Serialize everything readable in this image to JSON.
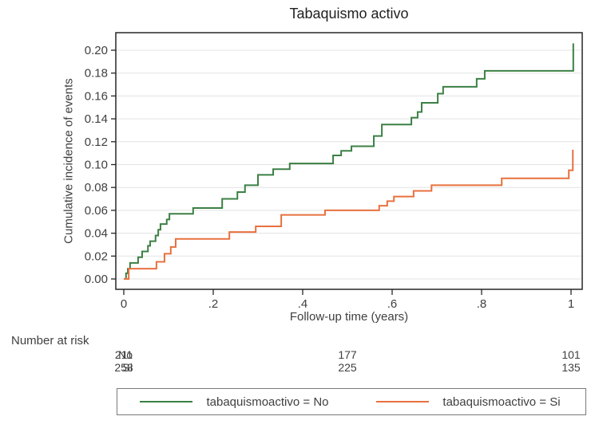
{
  "colors": {
    "series_no": "#3b8044",
    "series_si": "#e8713f",
    "grid": "#e3e3e3",
    "frame": "#262626",
    "text": "#3f3f3f"
  },
  "chart_data": {
    "type": "line",
    "subtype": "step-cumulative-incidence",
    "title": "Tabaquismo activo",
    "xlabel": "Follow-up time (years)",
    "ylabel": "Cumulative incidence of events",
    "xlim": [
      -0.02,
      1.03
    ],
    "ylim": [
      0,
      0.21
    ],
    "grid": "horizontal",
    "legend_position": "bottom-box",
    "x_ticks": [
      {
        "label": "0",
        "value": 0
      },
      {
        "label": ".2",
        "value": 0.2
      },
      {
        "label": ".4",
        "value": 0.4
      },
      {
        "label": ".6",
        "value": 0.6
      },
      {
        "label": ".8",
        "value": 0.8
      },
      {
        "label": "1",
        "value": 1
      }
    ],
    "y_ticks": [
      {
        "label": "0.00",
        "value": 0.0
      },
      {
        "label": "0.02",
        "value": 0.02
      },
      {
        "label": "0.04",
        "value": 0.04
      },
      {
        "label": "0.06",
        "value": 0.06
      },
      {
        "label": "0.08",
        "value": 0.08
      },
      {
        "label": "0.10",
        "value": 0.1
      },
      {
        "label": "0.12",
        "value": 0.12
      },
      {
        "label": "0.14",
        "value": 0.14
      },
      {
        "label": "0.16",
        "value": 0.16
      },
      {
        "label": "0.18",
        "value": 0.18
      },
      {
        "label": "0.20",
        "value": 0.2
      }
    ],
    "series": [
      {
        "name": "tabaquismoactivo = No",
        "color": "#3b8044",
        "step": true,
        "points": [
          [
            0,
            0
          ],
          [
            0.005,
            0.005
          ],
          [
            0.009,
            0.009
          ],
          [
            0.014,
            0.014
          ],
          [
            0.032,
            0.019
          ],
          [
            0.041,
            0.024
          ],
          [
            0.054,
            0.029
          ],
          [
            0.059,
            0.033
          ],
          [
            0.071,
            0.038
          ],
          [
            0.077,
            0.043
          ],
          [
            0.082,
            0.048
          ],
          [
            0.096,
            0.052
          ],
          [
            0.102,
            0.057
          ],
          [
            0.155,
            0.062
          ],
          [
            0.22,
            0.07
          ],
          [
            0.254,
            0.076
          ],
          [
            0.271,
            0.082
          ],
          [
            0.3,
            0.091
          ],
          [
            0.334,
            0.096
          ],
          [
            0.371,
            0.101
          ],
          [
            0.468,
            0.108
          ],
          [
            0.486,
            0.112
          ],
          [
            0.509,
            0.116
          ],
          [
            0.559,
            0.125
          ],
          [
            0.577,
            0.135
          ],
          [
            0.643,
            0.141
          ],
          [
            0.657,
            0.146
          ],
          [
            0.666,
            0.154
          ],
          [
            0.702,
            0.162
          ],
          [
            0.714,
            0.168
          ],
          [
            0.789,
            0.175
          ],
          [
            0.807,
            0.182
          ],
          [
            1.005,
            0.206
          ]
        ]
      },
      {
        "name": "tabaquismoactivo = Si",
        "color": "#e8713f",
        "step": true,
        "points": [
          [
            0,
            0
          ],
          [
            0.011,
            0.009
          ],
          [
            0.073,
            0.015
          ],
          [
            0.091,
            0.022
          ],
          [
            0.105,
            0.028
          ],
          [
            0.116,
            0.035
          ],
          [
            0.236,
            0.041
          ],
          [
            0.295,
            0.046
          ],
          [
            0.352,
            0.056
          ],
          [
            0.45,
            0.06
          ],
          [
            0.571,
            0.064
          ],
          [
            0.589,
            0.068
          ],
          [
            0.604,
            0.072
          ],
          [
            0.648,
            0.077
          ],
          [
            0.688,
            0.082
          ],
          [
            0.845,
            0.088
          ],
          [
            0.995,
            0.095
          ],
          [
            1.004,
            0.113
          ]
        ]
      }
    ],
    "number_at_risk": {
      "heading": "Number at risk",
      "times": [
        0,
        0.5,
        1
      ],
      "rows": [
        {
          "label": "No",
          "counts": [
            "211",
            "177",
            "101"
          ]
        },
        {
          "label": "Si",
          "counts": [
            "258",
            "225",
            "135"
          ]
        }
      ]
    }
  }
}
